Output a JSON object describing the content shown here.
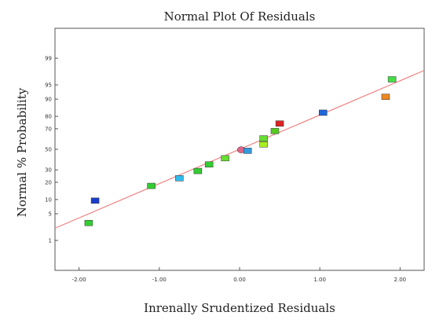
{
  "chart_data": {
    "type": "scatter",
    "title": "Normal Plot Of Residuals",
    "xlabel": "Inrenally Srudentized Residuals",
    "ylabel": "Normal % Probability",
    "xlim": [
      -2.3,
      2.3
    ],
    "ylim": [
      0.1,
      99.9
    ],
    "y_scale": "normal-probability",
    "grid": false,
    "x_ticks": [
      "-2.00",
      "-1.00",
      "0.00",
      "1.00",
      "2.00"
    ],
    "y_ticks": [
      "1",
      "5",
      "10",
      "20",
      "30",
      "50",
      "70",
      "80",
      "90",
      "95",
      "99"
    ],
    "fit_line": {
      "x": [
        -2.3,
        2.3
      ],
      "y": [
        2.2,
        97.8
      ],
      "color": "#f08080"
    },
    "points": [
      {
        "x": -1.88,
        "y": 3.0,
        "color": "#33cc33",
        "shape": "rect"
      },
      {
        "x": -1.8,
        "y": 9.5,
        "color": "#1a3ecc",
        "shape": "rect"
      },
      {
        "x": -1.1,
        "y": 17.5,
        "color": "#33cc33",
        "shape": "rect"
      },
      {
        "x": -0.75,
        "y": 23.0,
        "color": "#33bbee",
        "shape": "rect"
      },
      {
        "x": -0.52,
        "y": 29.0,
        "color": "#33cc33",
        "shape": "rect"
      },
      {
        "x": -0.38,
        "y": 35.0,
        "color": "#33cc33",
        "shape": "rect"
      },
      {
        "x": -0.18,
        "y": 41.0,
        "color": "#66dd33",
        "shape": "rect"
      },
      {
        "x": 0.02,
        "y": 49.5,
        "color": "#dd6688",
        "shape": "circle"
      },
      {
        "x": 0.1,
        "y": 48.5,
        "color": "#3399dd",
        "shape": "rect"
      },
      {
        "x": 0.3,
        "y": 55.0,
        "color": "#aaee22",
        "shape": "rect"
      },
      {
        "x": 0.3,
        "y": 61.0,
        "color": "#66dd33",
        "shape": "rect"
      },
      {
        "x": 0.44,
        "y": 68.0,
        "color": "#55cc22",
        "shape": "rect"
      },
      {
        "x": 0.5,
        "y": 74.5,
        "color": "#dd2222",
        "shape": "rect"
      },
      {
        "x": 1.04,
        "y": 82.5,
        "color": "#1e66dd",
        "shape": "rect"
      },
      {
        "x": 1.82,
        "y": 91.0,
        "color": "#ee8822",
        "shape": "rect"
      },
      {
        "x": 1.9,
        "y": 96.3,
        "color": "#44dd44",
        "shape": "rect"
      }
    ]
  }
}
